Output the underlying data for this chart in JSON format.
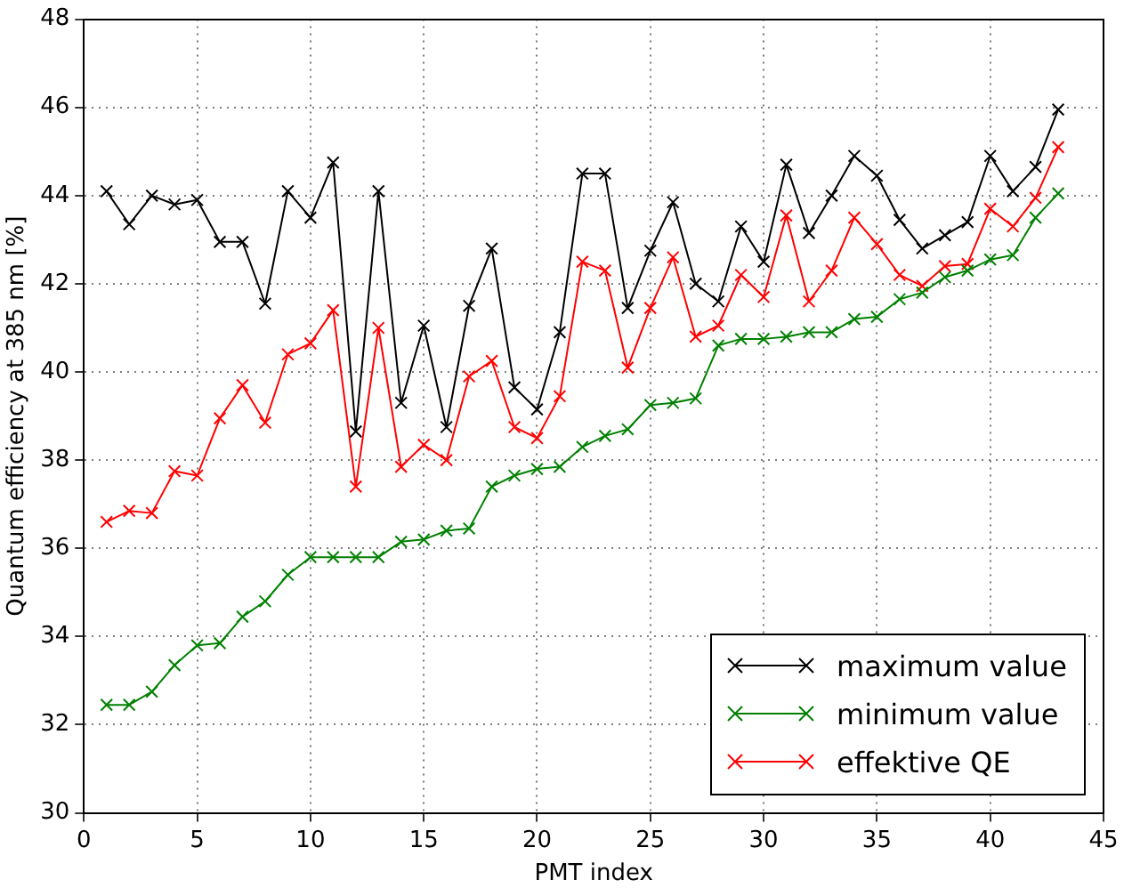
{
  "chart_data": {
    "type": "line",
    "xlabel": "PMT index",
    "ylabel": "Quantum efficiency at 385 nm [%]",
    "x": [
      1,
      2,
      3,
      4,
      5,
      6,
      7,
      8,
      9,
      10,
      11,
      12,
      13,
      14,
      15,
      16,
      17,
      18,
      19,
      20,
      21,
      22,
      23,
      24,
      25,
      26,
      27,
      28,
      29,
      30,
      31,
      32,
      33,
      34,
      35,
      36,
      37,
      38,
      39,
      40,
      41,
      42,
      43
    ],
    "series": [
      {
        "name": "maximum value",
        "color": "#000000",
        "values": [
          44.1,
          43.35,
          44.0,
          43.8,
          43.9,
          42.95,
          42.95,
          41.55,
          44.1,
          43.5,
          44.75,
          38.65,
          44.1,
          39.3,
          41.05,
          38.75,
          41.5,
          42.8,
          39.65,
          39.15,
          40.9,
          44.5,
          44.5,
          41.45,
          42.75,
          43.85,
          42.0,
          41.6,
          43.3,
          42.5,
          44.7,
          43.15,
          44.0,
          44.9,
          44.45,
          43.45,
          42.8,
          43.1,
          43.4,
          44.9,
          44.1,
          44.65,
          45.95
        ]
      },
      {
        "name": "minimum value",
        "color": "#008000",
        "values": [
          32.45,
          32.45,
          32.75,
          33.35,
          33.8,
          33.85,
          34.45,
          34.8,
          35.4,
          35.8,
          35.8,
          35.8,
          35.8,
          36.15,
          36.2,
          36.4,
          36.45,
          37.4,
          37.65,
          37.8,
          37.85,
          38.3,
          38.55,
          38.7,
          39.25,
          39.3,
          39.4,
          40.6,
          40.75,
          40.75,
          40.8,
          40.9,
          40.9,
          41.2,
          41.25,
          41.65,
          41.8,
          42.15,
          42.3,
          42.55,
          42.65,
          43.5,
          44.05
        ]
      },
      {
        "name": "effektive QE",
        "color": "#ff0000",
        "values": [
          36.6,
          36.85,
          36.8,
          37.75,
          37.65,
          38.95,
          39.7,
          38.85,
          40.4,
          40.65,
          41.4,
          37.4,
          41.0,
          37.85,
          38.35,
          38.0,
          39.9,
          40.25,
          38.75,
          38.5,
          39.45,
          42.5,
          42.3,
          40.1,
          41.45,
          42.6,
          40.8,
          41.05,
          42.2,
          41.7,
          43.55,
          41.6,
          42.3,
          43.5,
          42.9,
          42.2,
          41.95,
          42.4,
          42.45,
          43.7,
          43.3,
          43.95,
          45.1
        ]
      }
    ],
    "xlim": [
      0,
      45
    ],
    "xticks": [
      0,
      5,
      10,
      15,
      20,
      25,
      30,
      35,
      40,
      45
    ],
    "ylim": [
      30,
      48
    ],
    "yticks": [
      30,
      32,
      34,
      36,
      38,
      40,
      42,
      44,
      46,
      48
    ],
    "grid": true,
    "legend": "bottom right",
    "marker": "cross",
    "line_style": "solid"
  }
}
